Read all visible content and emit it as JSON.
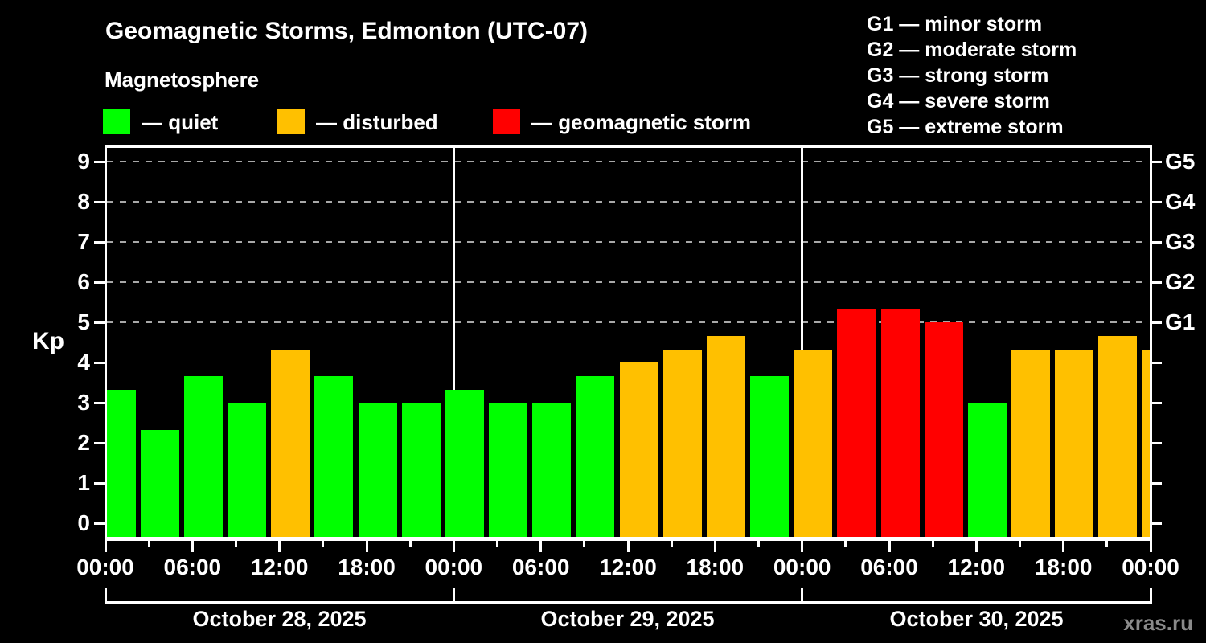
{
  "page": {
    "background": "#000000",
    "watermark": "xras.ru"
  },
  "header": {
    "title": "Geomagnetic Storms, Edmonton (UTC-07)",
    "subtitle": "Magnetosphere",
    "legend": [
      {
        "key": "quiet",
        "label": "— quiet",
        "color": "#00ff00"
      },
      {
        "key": "disturbed",
        "label": "— disturbed",
        "color": "#ffc000"
      },
      {
        "key": "storm",
        "label": "— geomagnetic storm",
        "color": "#ff0000"
      }
    ],
    "storm_scale": [
      "G1 — minor storm",
      "G2 — moderate storm",
      "G3 — strong storm",
      "G4 — severe storm",
      "G5 — extreme storm"
    ]
  },
  "chart_data": {
    "type": "bar",
    "title": "Geomagnetic Storms, Edmonton (UTC-07)",
    "ylabel": "Kp",
    "y_ticks": [
      0,
      1,
      2,
      3,
      4,
      5,
      6,
      7,
      8,
      9
    ],
    "ylim": [
      0,
      9
    ],
    "grid_dashed_at_kp": [
      5,
      6,
      7,
      8,
      9
    ],
    "right_axis_labels": [
      {
        "kp": 5,
        "label": "G1"
      },
      {
        "kp": 6,
        "label": "G2"
      },
      {
        "kp": 7,
        "label": "G3"
      },
      {
        "kp": 8,
        "label": "G4"
      },
      {
        "kp": 9,
        "label": "G5"
      }
    ],
    "x_axis": {
      "tick_label_cycle": [
        "00:00",
        "06:00",
        "12:00",
        "18:00"
      ],
      "major_tick_every_hours": 6,
      "minor_tick_every_hours": 3,
      "bar_interval_hours": 3
    },
    "days": [
      {
        "date": "October 28, 2025",
        "values": [
          3.33,
          2.33,
          3.67,
          3.0,
          4.33,
          3.67,
          3.0,
          3.0
        ]
      },
      {
        "date": "October 29, 2025",
        "values": [
          3.33,
          3.0,
          3.0,
          3.67,
          4.0,
          4.33,
          4.67,
          3.67
        ]
      },
      {
        "date": "October 30, 2025",
        "values": [
          4.33,
          5.33,
          5.33,
          5.0,
          3.0,
          4.33,
          4.33,
          4.67
        ]
      }
    ],
    "next_interval_partial_value": 4.33,
    "thresholds": {
      "disturbed_at": 4,
      "storm_at": 5
    },
    "colors": {
      "quiet": "#00ff00",
      "disturbed": "#ffc000",
      "storm": "#ff0000",
      "axis": "#ffffff",
      "grid": "#a8a8a8",
      "watermark": "#8a8a8a"
    },
    "legend_position": "top"
  }
}
